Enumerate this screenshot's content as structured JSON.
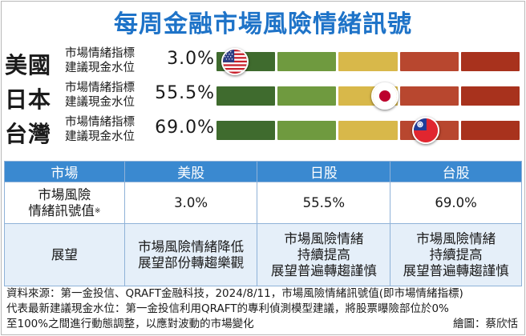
{
  "title": "每周金融市場風險情緒訊號",
  "gauge_colors": [
    "#3f6b2e",
    "#6f9a3f",
    "#d8b84a",
    "#b8472f",
    "#a8321d"
  ],
  "label_line1": "市場情緒指標",
  "label_line2": "建議現金水位",
  "rows": [
    {
      "country": "美國",
      "value": "3.0%",
      "flag": "us-flag-icon"
    },
    {
      "country": "日本",
      "value": "55.5%",
      "flag": "japan-flag-icon"
    },
    {
      "country": "台灣",
      "value": "69.0%",
      "flag": "taiwan-flag-icon"
    }
  ],
  "table": {
    "headers": [
      "市場",
      "美股",
      "日股",
      "台股"
    ],
    "row1_label": "市場風險\n情緒訊號值",
    "row1_mark": "※",
    "row1_values": [
      "3.0%",
      "55.5%",
      "69.0%"
    ],
    "row2_label": "展望",
    "row2_values": [
      "市場風險情緒降低\n展望部份轉趨樂觀",
      "市場風險情緒\n持續提高\n展望普遍轉趨謹慎",
      "市場風險情緒\n持續提高\n展望普遍轉趨謹慎"
    ]
  },
  "note": {
    "line1": "資料來源：第一金投信、QRAFT金融科技，2024/8/11，市場風險情緒訊號值(即市場情緒指標)",
    "line2": "代表最新建議現金水位：第一金投信利用QRAFT的專利偵測模型建議，將股票曝險部位於0%",
    "line3": "至100%之間進行動態調整，以應對波動的市場變化",
    "credit": "繪圖：蔡欣恬"
  },
  "chart_data": {
    "type": "bar",
    "categories": [
      "美國",
      "日本",
      "台灣"
    ],
    "values": [
      3.0,
      55.5,
      69.0
    ],
    "title": "每周金融市場風險情緒訊號",
    "xlabel": "",
    "ylabel": "",
    "ylim": [
      0,
      100
    ]
  }
}
